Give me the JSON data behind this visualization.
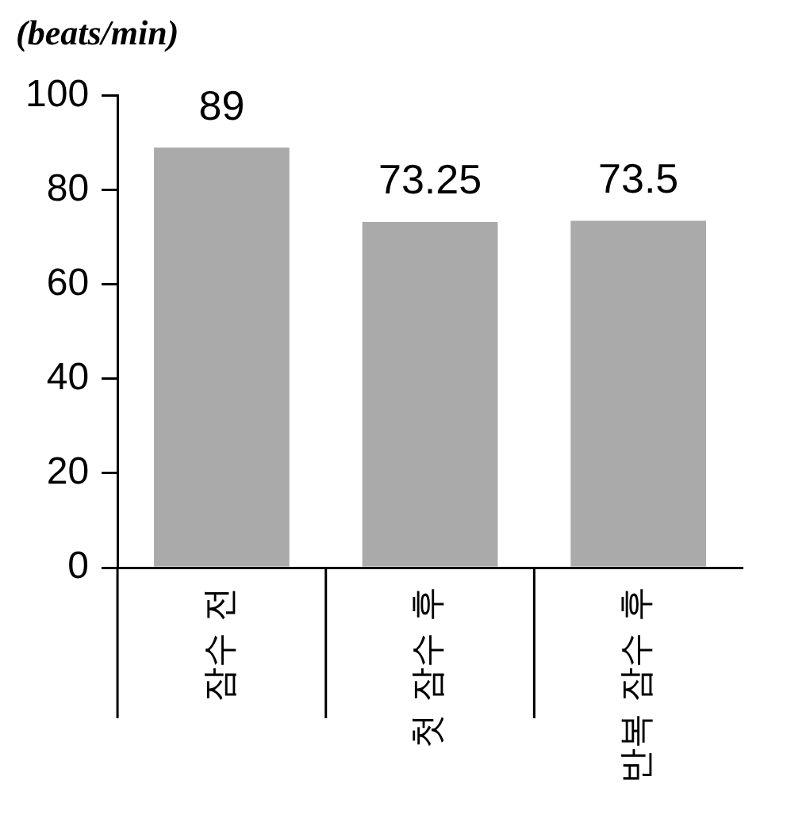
{
  "chart_data": {
    "type": "bar",
    "ylabel": "(beats/min)",
    "categories": [
      "잠수 전",
      "첫 잠수 후",
      "반복 잠수 후"
    ],
    "values": [
      89,
      73.25,
      73.5
    ],
    "color": "#aaaaaa",
    "ylim": [
      0,
      100
    ],
    "yticks": [
      0,
      20,
      40,
      60,
      80,
      100
    ],
    "grid": false,
    "legend": false,
    "data_labels": true
  }
}
